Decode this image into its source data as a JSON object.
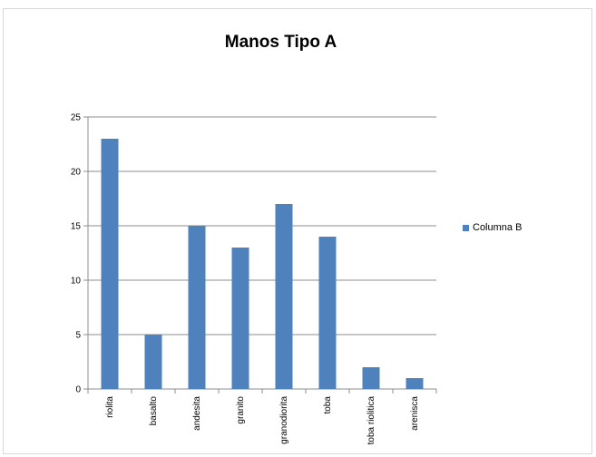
{
  "chart_data": {
    "type": "bar",
    "title": "Manos Tipo A",
    "categories": [
      "riolita",
      "basalto",
      "andesita",
      "granito",
      "granodiorita",
      "toba",
      "toba riolitica",
      "arenisca"
    ],
    "series": [
      {
        "name": "Columna B",
        "values": [
          23,
          5,
          15,
          13,
          17,
          14,
          2,
          1
        ],
        "color": "#4f81bd"
      }
    ],
    "ylim": [
      0,
      25
    ],
    "yticks": [
      0,
      5,
      10,
      15,
      20,
      25
    ],
    "grid": true,
    "legend": "right"
  }
}
